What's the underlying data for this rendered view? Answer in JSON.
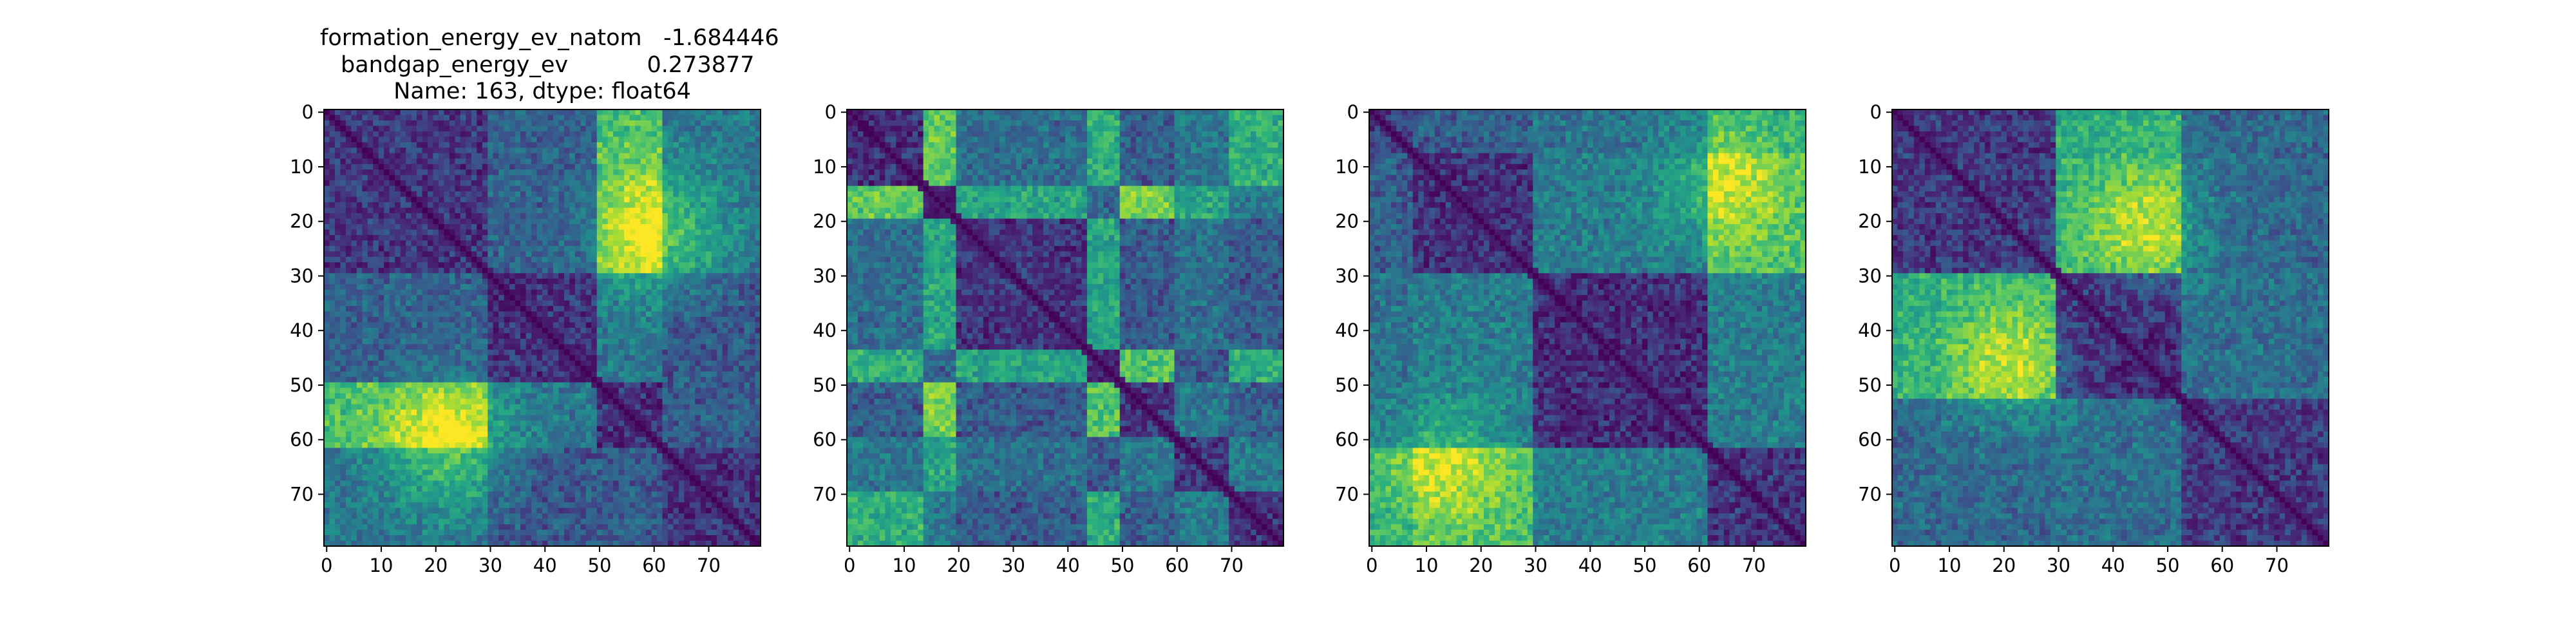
{
  "chart_data": [
    {
      "type": "heatmap",
      "title_lines": [
        "formation_energy_ev_natom   -1.684446",
        "bandgap_energy_ev           0.273877",
        "Name: 163, dtype: float64"
      ],
      "size": 80,
      "xticks": [
        0,
        10,
        20,
        30,
        40,
        50,
        60,
        70
      ],
      "yticks": [
        0,
        10,
        20,
        30,
        40,
        50,
        60,
        70
      ],
      "colormap": "viridis",
      "blocks": [
        0,
        30,
        50,
        62,
        80
      ],
      "block_values": [
        [
          0.18,
          0.32,
          0.7,
          0.4
        ],
        [
          0.32,
          0.16,
          0.4,
          0.28
        ],
        [
          0.7,
          0.4,
          0.16,
          0.3
        ],
        [
          0.4,
          0.28,
          0.3,
          0.16
        ]
      ],
      "hotspots": [
        {
          "x": 61,
          "y": 22,
          "strength": 0.35,
          "radius": 8
        },
        {
          "x": 22,
          "y": 61,
          "strength": 0.35,
          "radius": 8
        }
      ]
    },
    {
      "type": "heatmap",
      "title_lines": [],
      "size": 80,
      "xticks": [
        0,
        10,
        20,
        30,
        40,
        50,
        60,
        70
      ],
      "yticks": [
        0,
        10,
        20,
        30,
        40,
        50,
        60,
        70
      ],
      "colormap": "viridis",
      "blocks": [
        0,
        14,
        20,
        44,
        50,
        60,
        70,
        80
      ],
      "block_values": [
        [
          0.15,
          0.75,
          0.35,
          0.62,
          0.3,
          0.4,
          0.62
        ],
        [
          0.75,
          0.12,
          0.58,
          0.32,
          0.8,
          0.58,
          0.4
        ],
        [
          0.35,
          0.58,
          0.16,
          0.58,
          0.28,
          0.36,
          0.28
        ],
        [
          0.62,
          0.32,
          0.58,
          0.12,
          0.72,
          0.28,
          0.62
        ],
        [
          0.3,
          0.8,
          0.28,
          0.72,
          0.16,
          0.4,
          0.3
        ],
        [
          0.4,
          0.58,
          0.36,
          0.28,
          0.4,
          0.16,
          0.4
        ],
        [
          0.62,
          0.4,
          0.28,
          0.62,
          0.3,
          0.4,
          0.16
        ]
      ],
      "hotspots": []
    },
    {
      "type": "heatmap",
      "title_lines": [],
      "size": 80,
      "xticks": [
        0,
        10,
        20,
        30,
        40,
        50,
        60,
        70
      ],
      "yticks": [
        0,
        10,
        20,
        30,
        40,
        50,
        60,
        70
      ],
      "colormap": "viridis",
      "blocks": [
        0,
        8,
        30,
        62,
        80
      ],
      "block_values": [
        [
          0.2,
          0.3,
          0.38,
          0.62
        ],
        [
          0.3,
          0.16,
          0.42,
          0.7
        ],
        [
          0.38,
          0.42,
          0.14,
          0.42
        ],
        [
          0.62,
          0.7,
          0.42,
          0.16
        ]
      ],
      "hotspots": [
        {
          "x": 64,
          "y": 13,
          "strength": 0.25,
          "radius": 8
        },
        {
          "x": 13,
          "y": 64,
          "strength": 0.25,
          "radius": 8
        }
      ]
    },
    {
      "type": "heatmap",
      "title_lines": [],
      "size": 80,
      "xticks": [
        0,
        10,
        20,
        30,
        40,
        50,
        60,
        70
      ],
      "yticks": [
        0,
        10,
        20,
        30,
        40,
        50,
        60,
        70
      ],
      "colormap": "viridis",
      "blocks": [
        0,
        30,
        53,
        80
      ],
      "block_values": [
        [
          0.18,
          0.62,
          0.34
        ],
        [
          0.62,
          0.14,
          0.36
        ],
        [
          0.34,
          0.36,
          0.18
        ]
      ],
      "hotspots": [
        {
          "x": 46,
          "y": 21,
          "strength": 0.3,
          "radius": 8
        },
        {
          "x": 21,
          "y": 46,
          "strength": 0.3,
          "radius": 8
        }
      ]
    }
  ]
}
